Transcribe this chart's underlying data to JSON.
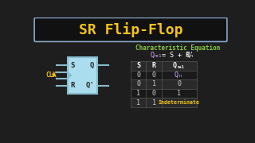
{
  "bg_color": "#1e1e1e",
  "title": "SR Flip-Flop",
  "title_color": "#f5c518",
  "title_border_color": "#88aacc",
  "char_eq_label": "Characteristic Equation",
  "char_eq_color": "#88cc44",
  "eq_color_Q": "#ddaaff",
  "eq_color_main": "#ffffff",
  "table_header_color": "#ffffff",
  "table_data_color": "#cccccc",
  "table_indeterminate_color": "#f5c518",
  "table_Qn_color": "#ddaaff",
  "flip_flop_box_color": "#aaddee",
  "flip_flop_line_color": "#88bbcc",
  "clk_color": "#f5c518",
  "clk_label": "CLK"
}
